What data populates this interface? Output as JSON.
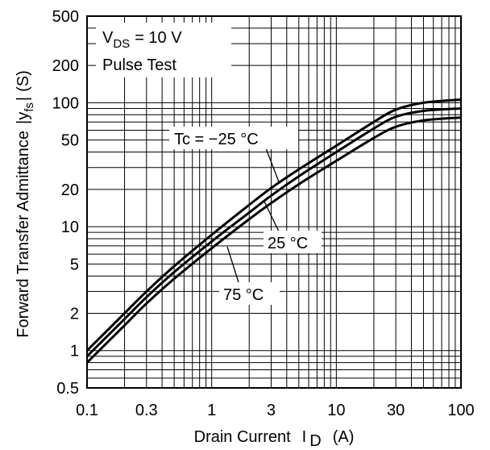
{
  "chart_data": {
    "type": "line",
    "xscale": "log",
    "yscale": "log",
    "xlim": [
      0.1,
      100
    ],
    "ylim": [
      0.5,
      500
    ],
    "grid": true,
    "xlabel": {
      "main": "Drain Current",
      "symbol": "I",
      "subscript": "D",
      "unit": "(A)"
    },
    "ylabel": {
      "main": "Forward Transfer Admittance",
      "symbol_open": "|y",
      "subscript": "fs",
      "symbol_close": "|",
      "unit": "(S)"
    },
    "x_ticks": [
      {
        "value": 0.1,
        "label": "0.1"
      },
      {
        "value": 0.3,
        "label": "0.3"
      },
      {
        "value": 1,
        "label": "1"
      },
      {
        "value": 3,
        "label": "3"
      },
      {
        "value": 10,
        "label": "10"
      },
      {
        "value": 30,
        "label": "30"
      },
      {
        "value": 100,
        "label": "100"
      }
    ],
    "y_ticks": [
      {
        "value": 0.5,
        "label": "0.5"
      },
      {
        "value": 1,
        "label": "1"
      },
      {
        "value": 2,
        "label": "2"
      },
      {
        "value": 5,
        "label": "5"
      },
      {
        "value": 10,
        "label": "10"
      },
      {
        "value": 20,
        "label": "20"
      },
      {
        "value": 50,
        "label": "50"
      },
      {
        "value": 100,
        "label": "100"
      },
      {
        "value": 200,
        "label": "200"
      },
      {
        "value": 500,
        "label": "500"
      }
    ],
    "conditions": {
      "vds_symbol": "V",
      "vds_subscript": "DS",
      "vds_value": "= 10 V",
      "test": "Pulse Test"
    },
    "series": [
      {
        "name": "Tc = −25 °C",
        "x": [
          0.1,
          0.2,
          0.3,
          0.5,
          1,
          2,
          3,
          5,
          10,
          20,
          30,
          50,
          100
        ],
        "y": [
          1.0,
          2.0,
          3.0,
          4.8,
          8.6,
          15,
          20.5,
          29,
          45,
          70,
          88,
          100,
          106
        ]
      },
      {
        "name": "25 °C",
        "x": [
          0.1,
          0.2,
          0.3,
          0.5,
          1,
          2,
          3,
          5,
          10,
          20,
          30,
          50,
          100
        ],
        "y": [
          0.9,
          1.8,
          2.7,
          4.3,
          7.6,
          13,
          17.8,
          25.5,
          40,
          62,
          77,
          86,
          90
        ]
      },
      {
        "name": "75 °C",
        "x": [
          0.1,
          0.2,
          0.3,
          0.5,
          1,
          2,
          3,
          5,
          10,
          20,
          30,
          50,
          100
        ],
        "y": [
          0.8,
          1.6,
          2.4,
          3.8,
          6.7,
          11.5,
          15.5,
          22,
          34,
          52,
          64,
          72,
          76
        ]
      }
    ]
  }
}
